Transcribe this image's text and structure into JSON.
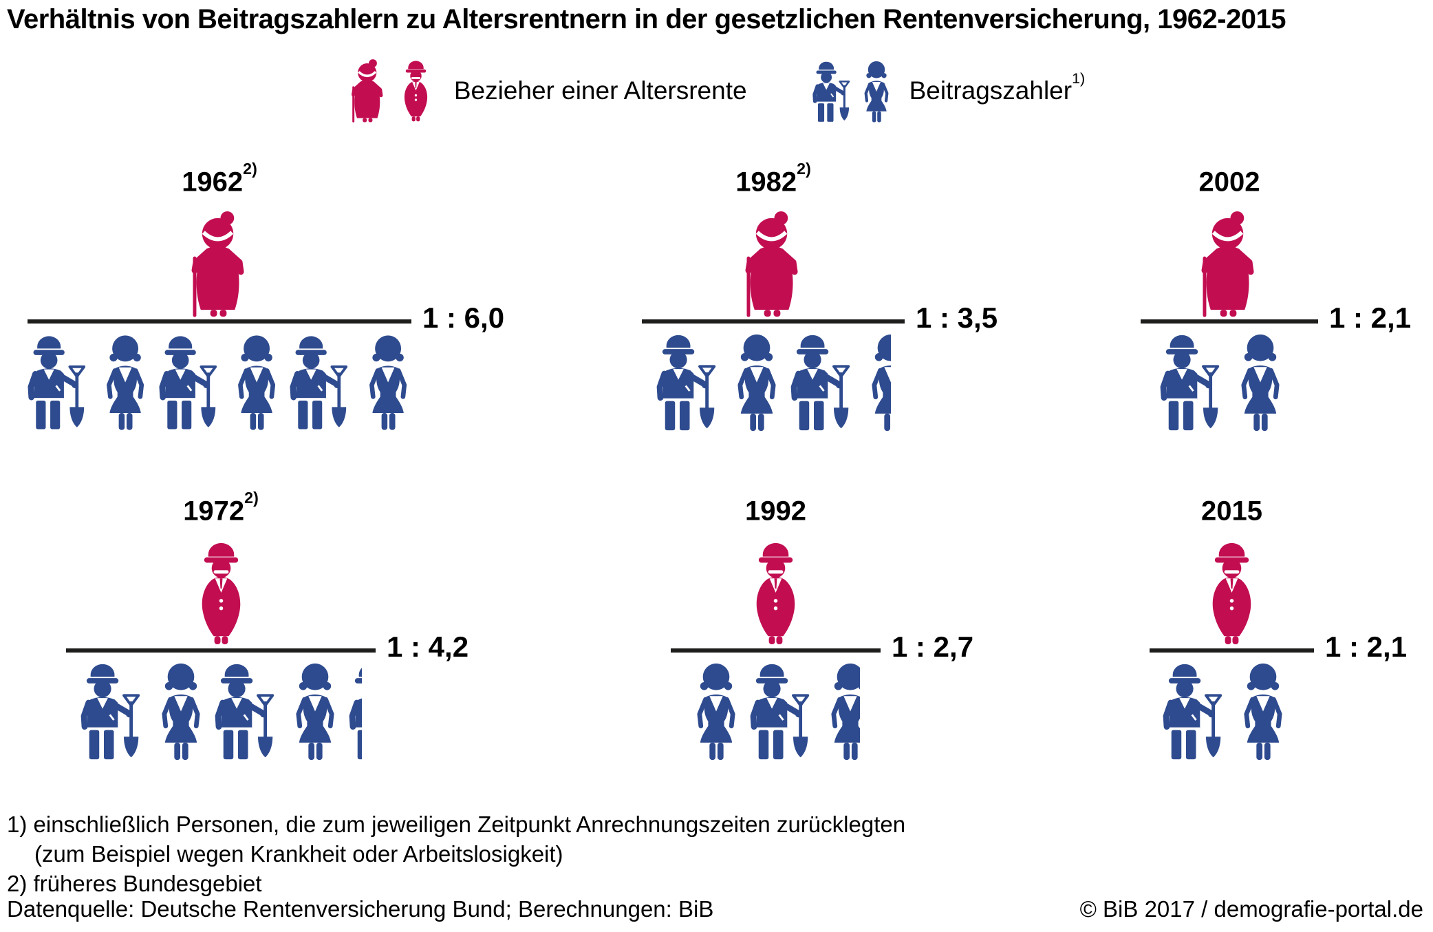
{
  "title": "Verhältnis von Beitragszahlern zu Altersrentnern in der gesetzlichen Rentenversicherung, 1962-2015",
  "legend": {
    "pensioners_label": "Bezieher einer Altersrente",
    "contributors_label": "Beitragszahler",
    "contributors_footnote_marker": "1)"
  },
  "colors": {
    "pensioner_red": "#C20E51",
    "contributor_blue": "#2E4B8F",
    "divider_dark": "#1D1D1B"
  },
  "panels": [
    {
      "year": "1962",
      "footnote_marker": "2)",
      "pensioner": "old-woman",
      "ratio_label": "1 : 6,0",
      "ratio_value": 6.0,
      "workers": [
        {
          "type": "man",
          "fraction": 1
        },
        {
          "type": "woman",
          "fraction": 1
        },
        {
          "type": "man",
          "fraction": 1
        },
        {
          "type": "woman",
          "fraction": 1
        },
        {
          "type": "man",
          "fraction": 1
        },
        {
          "type": "woman",
          "fraction": 1
        }
      ]
    },
    {
      "year": "1982",
      "footnote_marker": "2)",
      "pensioner": "old-woman",
      "ratio_label": "1 : 3,5",
      "ratio_value": 3.5,
      "workers": [
        {
          "type": "man",
          "fraction": 1
        },
        {
          "type": "woman",
          "fraction": 1
        },
        {
          "type": "man",
          "fraction": 1
        },
        {
          "type": "woman",
          "fraction": 0.5
        }
      ]
    },
    {
      "year": "2002",
      "footnote_marker": "",
      "pensioner": "old-woman",
      "ratio_label": "1 : 2,1",
      "ratio_value": 2.1,
      "workers": [
        {
          "type": "man",
          "fraction": 1
        },
        {
          "type": "woman",
          "fraction": 1
        },
        {
          "type": "woman",
          "fraction": 0.1
        }
      ]
    },
    {
      "year": "1972",
      "footnote_marker": "2)",
      "pensioner": "old-man",
      "ratio_label": "1 : 4,2",
      "ratio_value": 4.2,
      "workers": [
        {
          "type": "man",
          "fraction": 1
        },
        {
          "type": "woman",
          "fraction": 1
        },
        {
          "type": "man",
          "fraction": 1
        },
        {
          "type": "woman",
          "fraction": 1
        },
        {
          "type": "man",
          "fraction": 0.2
        }
      ]
    },
    {
      "year": "1992",
      "footnote_marker": "",
      "pensioner": "old-man",
      "ratio_label": "1 : 2,7",
      "ratio_value": 2.7,
      "workers": [
        {
          "type": "woman",
          "fraction": 1
        },
        {
          "type": "man",
          "fraction": 1
        },
        {
          "type": "woman",
          "fraction": 0.7
        }
      ]
    },
    {
      "year": "2015",
      "footnote_marker": "",
      "pensioner": "old-man",
      "ratio_label": "1 : 2,1",
      "ratio_value": 2.1,
      "workers": [
        {
          "type": "man",
          "fraction": 1
        },
        {
          "type": "woman",
          "fraction": 1
        },
        {
          "type": "woman",
          "fraction": 0.1
        }
      ]
    }
  ],
  "footnotes": {
    "line1": "1) einschließlich Personen, die zum jeweiligen Zeitpunkt Anrechnungszeiten zurücklegten",
    "line2": "(zum Beispiel wegen Krankheit oder Arbeitslosigkeit)",
    "line3": "2) früheres Bundesgebiet"
  },
  "source": "Datenquelle: Deutsche Rentenversicherung Bund; Berechnungen: BiB",
  "copyright": "© BiB 2017 / demografie-portal.de",
  "chart_data": {
    "type": "bar",
    "title": "Verhältnis von Beitragszahlern zu Altersrentnern in der gesetzlichen Rentenversicherung, 1962-2015",
    "categories": [
      "1962",
      "1972",
      "1982",
      "1992",
      "2002",
      "2015"
    ],
    "values": [
      6.0,
      4.2,
      3.5,
      2.7,
      2.1,
      2.1
    ],
    "value_labels": [
      "1 : 6,0",
      "1 : 4,2",
      "1 : 3,5",
      "1 : 2,7",
      "1 : 2,1",
      "1 : 2,1"
    ],
    "series_note_markers": {
      "1962": "2)",
      "1972": "2)",
      "1982": "2)"
    },
    "legend_entries": [
      "Bezieher einer Altersrente",
      "Beitragszahler"
    ],
    "xlabel": "",
    "ylabel": "",
    "ylim": [
      0,
      6
    ],
    "grid": false,
    "legend_position": "top-center"
  }
}
